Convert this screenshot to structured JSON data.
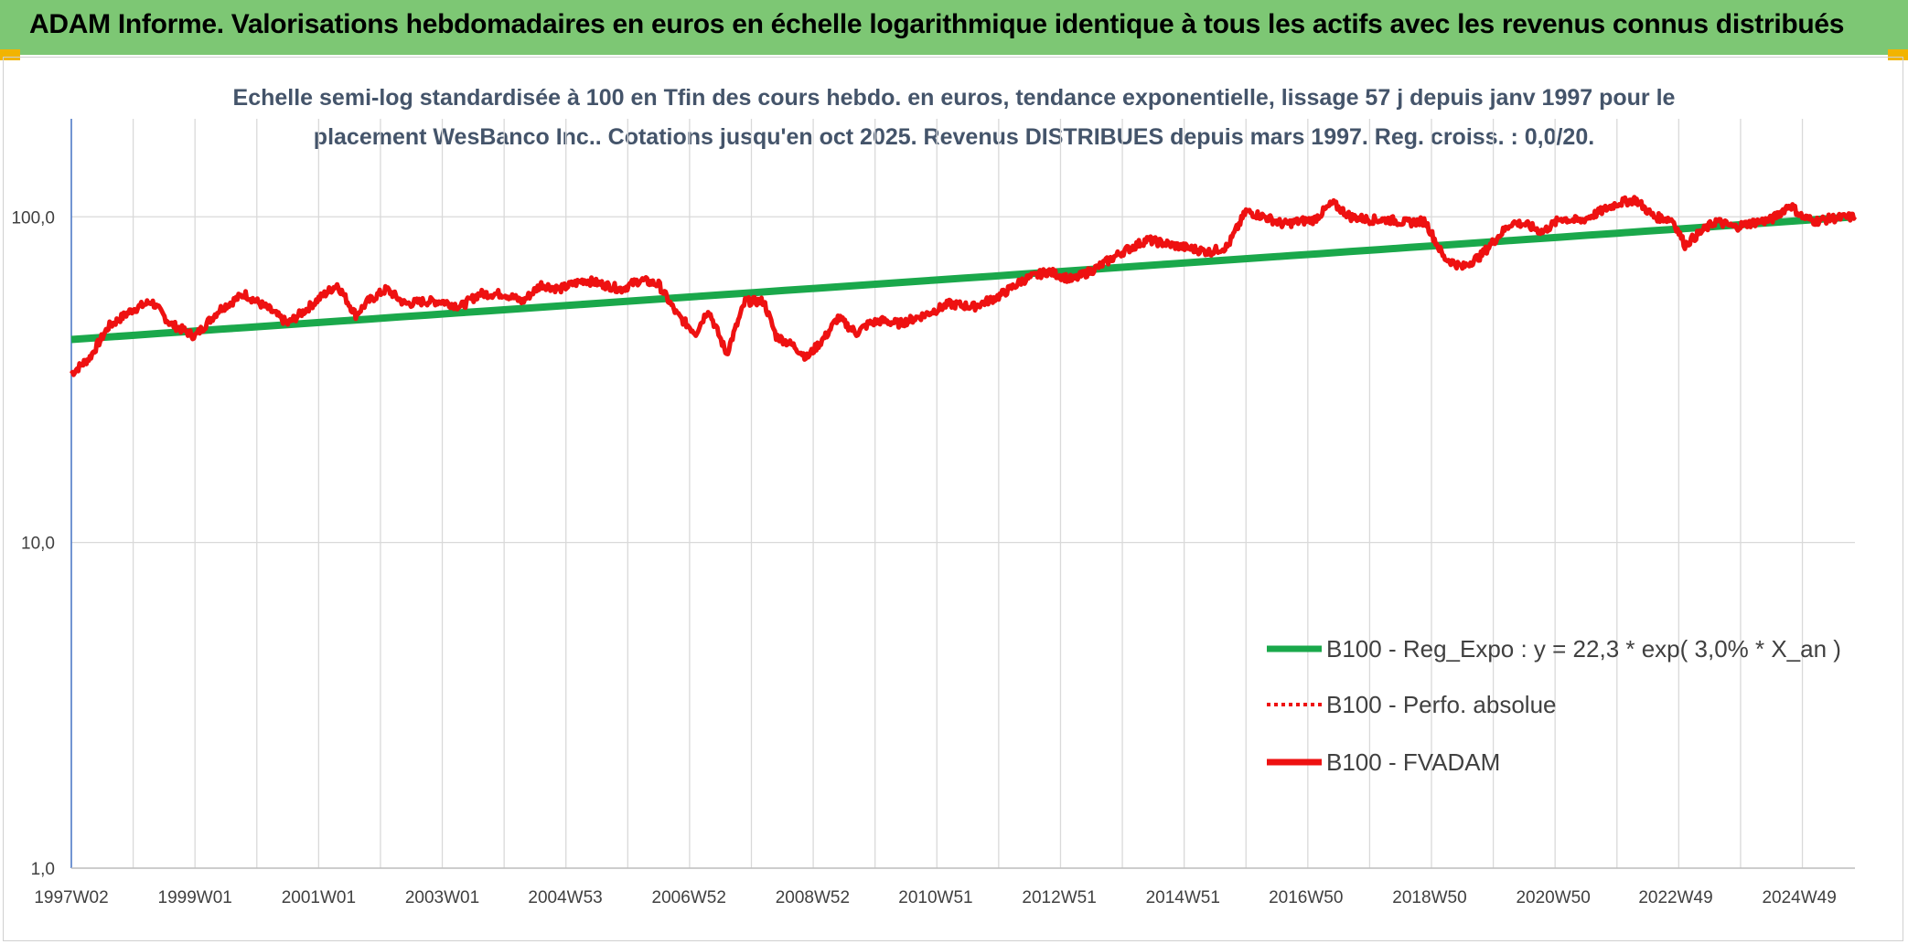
{
  "header": {
    "title": "ADAM Informe. Valorisations hebdomadaires en euros en échelle logarithmique identique à tous les actifs avec les revenus connus distribués"
  },
  "colors": {
    "banner": "#7dc774",
    "trend": "#1aa84b",
    "fvadam": "#ee1111",
    "perfo": "#ee1111",
    "grid": "#d9d9d9",
    "axis": "#4472c4"
  },
  "chart_data": {
    "type": "line",
    "title_line1": "Echelle semi-log standardisée à 100 en Tfin des cours hebdo. en euros, tendance exponentielle, lissage 57 j depuis janv 1997 pour le",
    "title_line2": "placement WesBanco Inc.. Cotations jusqu'en oct 2025. Revenus DISTRIBUES depuis mars 1997. Reg. croiss. : 0,0/20.",
    "y_scale": "log",
    "ylim": [
      1,
      200
    ],
    "y_ticks": [
      {
        "value": 1,
        "label": "1,0"
      },
      {
        "value": 10,
        "label": "10,0"
      },
      {
        "value": 100,
        "label": "100,0"
      }
    ],
    "xlim": [
      1997.0,
      2025.85
    ],
    "x_ticks": [
      {
        "year": 1997.0,
        "label": "1997W02"
      },
      {
        "year": 1999.0,
        "label": "1999W01"
      },
      {
        "year": 2001.0,
        "label": "2001W01"
      },
      {
        "year": 2003.0,
        "label": "2003W01"
      },
      {
        "year": 2004.99,
        "label": "2004W53"
      },
      {
        "year": 2006.99,
        "label": "2006W52"
      },
      {
        "year": 2008.99,
        "label": "2008W52"
      },
      {
        "year": 2010.98,
        "label": "2010W51"
      },
      {
        "year": 2012.98,
        "label": "2012W51"
      },
      {
        "year": 2014.98,
        "label": "2014W51"
      },
      {
        "year": 2016.97,
        "label": "2016W50"
      },
      {
        "year": 2018.97,
        "label": "2018W50"
      },
      {
        "year": 2020.97,
        "label": "2020W50"
      },
      {
        "year": 2022.95,
        "label": "2022W49"
      },
      {
        "year": 2024.95,
        "label": "2024W49"
      }
    ],
    "legend": [
      {
        "name": "B100 - Reg_Expo : y = 22,3 * exp( 3,0% *  X_an )",
        "style": "solid",
        "color": "#1aa84b"
      },
      {
        "name": "B100 - Perfo. absolue",
        "style": "dotted",
        "color": "#ee1111"
      },
      {
        "name": "B100 - FVADAM",
        "style": "solid",
        "color": "#ee1111"
      }
    ],
    "series": [
      {
        "name": "B100 - Reg_Expo",
        "type": "trend",
        "x": [
          1997.0,
          2025.85
        ],
        "values": [
          42,
          100
        ]
      },
      {
        "name": "B100 - FVADAM",
        "type": "line",
        "x": [
          1997.0,
          1997.3,
          1997.6,
          1998.0,
          1998.3,
          1998.6,
          1999.0,
          1999.4,
          1999.8,
          2000.2,
          2000.5,
          2000.8,
          2001.0,
          2001.3,
          2001.6,
          2001.8,
          2002.1,
          2002.4,
          2002.7,
          2003.0,
          2003.3,
          2003.6,
          2004.0,
          2004.3,
          2004.6,
          2004.9,
          2005.3,
          2005.6,
          2005.9,
          2006.2,
          2006.5,
          2006.8,
          2007.1,
          2007.3,
          2007.6,
          2007.9,
          2008.2,
          2008.4,
          2008.7,
          2008.9,
          2009.2,
          2009.4,
          2009.7,
          2009.9,
          2010.1,
          2010.4,
          2010.8,
          2011.2,
          2011.6,
          2012.0,
          2012.4,
          2012.8,
          2013.2,
          2013.6,
          2014.0,
          2014.4,
          2014.8,
          2015.1,
          2015.4,
          2015.7,
          2016.0,
          2016.3,
          2016.6,
          2016.9,
          2017.1,
          2017.4,
          2017.7,
          2018.0,
          2018.3,
          2018.6,
          2018.9,
          2019.2,
          2019.5,
          2019.8,
          2020.1,
          2020.3,
          2020.5,
          2020.8,
          2021.1,
          2021.4,
          2021.7,
          2022.0,
          2022.3,
          2022.6,
          2022.9,
          2023.1,
          2023.3,
          2023.6,
          2023.9,
          2024.2,
          2024.5,
          2024.8,
          2025.0,
          2025.2,
          2025.5,
          2025.85
        ],
        "values": [
          33,
          37,
          46,
          52,
          55,
          47,
          43,
          52,
          58,
          52,
          47,
          52,
          56,
          62,
          50,
          55,
          60,
          54,
          55,
          55,
          53,
          58,
          58,
          55,
          62,
          60,
          64,
          62,
          60,
          64,
          62,
          50,
          44,
          52,
          38,
          55,
          55,
          43,
          40,
          37,
          43,
          49,
          44,
          47,
          48,
          47,
          50,
          54,
          53,
          57,
          64,
          68,
          64,
          70,
          78,
          85,
          82,
          80,
          78,
          81,
          104,
          100,
          95,
          97,
          98,
          110,
          100,
          98,
          98,
          96,
          97,
          75,
          70,
          76,
          88,
          96,
          95,
          90,
          99,
          97,
          103,
          110,
          113,
          100,
          98,
          82,
          88,
          97,
          93,
          96,
          98,
          109,
          100,
          97,
          99,
          100
        ]
      }
    ]
  }
}
